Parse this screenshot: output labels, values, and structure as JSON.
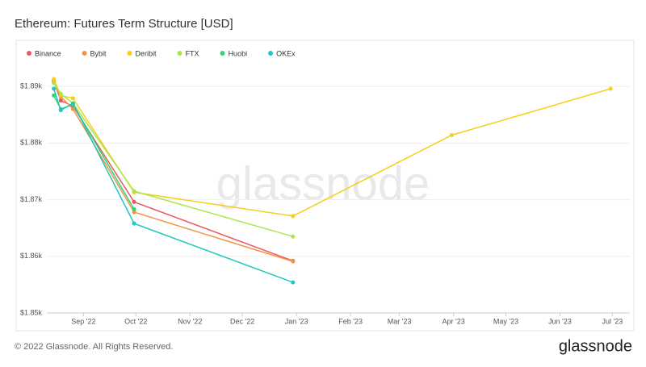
{
  "chart_data": {
    "type": "line",
    "title": "Ethereum: Futures Term Structure [USD]",
    "x": [
      "2022-08-15",
      "2022-08-19",
      "2022-08-26",
      "2022-09-30",
      "2022-12-30",
      "2023-03-31",
      "2023-06-30"
    ],
    "xlim": [
      "2022-08-11",
      "2023-07-11"
    ],
    "xticks": [
      {
        "value": "2022-09-01",
        "label": "Sep '22"
      },
      {
        "value": "2022-10-01",
        "label": "Oct '22"
      },
      {
        "value": "2022-11-01",
        "label": "Nov '22"
      },
      {
        "value": "2022-12-01",
        "label": "Dec '22"
      },
      {
        "value": "2023-01-01",
        "label": "Jan '23"
      },
      {
        "value": "2023-02-01",
        "label": "Feb '23"
      },
      {
        "value": "2023-03-01",
        "label": "Mar '23"
      },
      {
        "value": "2023-04-01",
        "label": "Apr '23"
      },
      {
        "value": "2023-05-01",
        "label": "May '23"
      },
      {
        "value": "2023-06-01",
        "label": "Jun '23"
      },
      {
        "value": "2023-07-01",
        "label": "Jul '23"
      }
    ],
    "ylim": [
      1850,
      1897
    ],
    "yticks": [
      {
        "value": 1850,
        "label": "$1.85k"
      },
      {
        "value": 1860,
        "label": "$1.86k"
      },
      {
        "value": 1870,
        "label": "$1.87k"
      },
      {
        "value": 1880,
        "label": "$1.88k"
      },
      {
        "value": 1890,
        "label": "$1.89k"
      }
    ],
    "grid": true,
    "legend": "top-left",
    "series": [
      {
        "name": "Binance",
        "color": "#e8585c",
        "values": [
          1891.0,
          1887.5,
          1886.5,
          1869.6,
          1859.2,
          null,
          null
        ]
      },
      {
        "name": "Bybit",
        "color": "#f0954a",
        "values": [
          1890.8,
          1888.2,
          1886.0,
          1867.8,
          1859.1,
          null,
          null
        ]
      },
      {
        "name": "Deribit",
        "color": "#f4cf1b",
        "values": [
          1891.3,
          1888.4,
          1887.9,
          1871.3,
          1867.1,
          1881.4,
          1889.6
        ]
      },
      {
        "name": "FTX",
        "color": "#a9e64a",
        "values": [
          1890.6,
          1888.7,
          1887.0,
          1871.5,
          1863.5,
          null,
          null
        ]
      },
      {
        "name": "Huobi",
        "color": "#2ed47a",
        "values": [
          1888.4,
          1886.0,
          1886.8,
          1868.3,
          null,
          null,
          null
        ]
      },
      {
        "name": "OKEx",
        "color": "#20c7c0",
        "values": [
          1889.6,
          1885.8,
          1887.0,
          1865.8,
          1855.4,
          null,
          null
        ]
      }
    ],
    "watermark": "glassnode",
    "copyright": "© 2022 Glassnode. All Rights Reserved.",
    "logo": "glassnode"
  }
}
